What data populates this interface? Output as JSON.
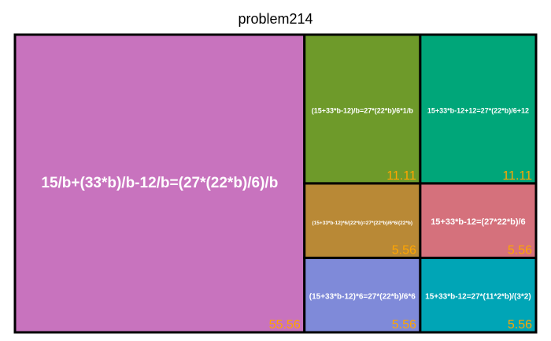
{
  "chart_data": {
    "type": "treemap",
    "title": "problem214",
    "value_color": "#FFA500",
    "label_color": "#FFFFFF",
    "border_color": "#000000",
    "items": [
      {
        "label": "15/b+(33*b)/b-12/b=(27*(22*b)/6)/b",
        "value": 55.56,
        "value_label": "55.56",
        "color": "#C873BE"
      },
      {
        "label": "(15+33*b-12)/b=27*(22*b)/6*1/b",
        "value": 11.11,
        "value_label": "11.11",
        "color": "#6E9A2A"
      },
      {
        "label": "15+33*b-12+12=27*(22*b)/6+12",
        "value": 11.11,
        "value_label": "11.11",
        "color": "#00A679"
      },
      {
        "label": "(15+33*b-12)*6/(22*b)=27*(22*b)/6*6/(22*b)",
        "value": 5.56,
        "value_label": "5.56",
        "color": "#B98936"
      },
      {
        "label": "15+33*b-12=(27*22*b)/6",
        "value": 5.56,
        "value_label": "5.56",
        "color": "#D5717C"
      },
      {
        "label": "(15+33*b-12)*6=27*(22*b)/6*6",
        "value": 5.56,
        "value_label": "5.56",
        "color": "#7F8AD9"
      },
      {
        "label": "15+33*b-12=27*(11*2*b)/(3*2)",
        "value": 5.56,
        "value_label": "5.56",
        "color": "#00A5B6"
      }
    ]
  }
}
